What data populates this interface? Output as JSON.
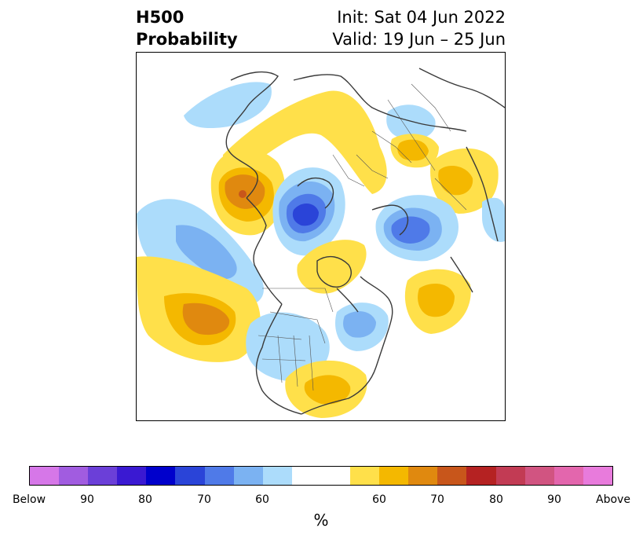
{
  "title": {
    "left_line1": "H500",
    "left_line2": "Probability",
    "right_line1": "Init: Sat 04 Jun 2022",
    "right_line2": "Valid: 19 Jun – 25 Jun"
  },
  "colorbar": {
    "unit": "%",
    "colors": [
      "#d677e8",
      "#a15ce0",
      "#6b3fd8",
      "#3a19d2",
      "#0000cc",
      "#2a44d8",
      "#4f7ae8",
      "#7bb2f2",
      "#acdcfb",
      "#ffffff",
      "#ffffff",
      "#ffe04a",
      "#f4b800",
      "#e0890f",
      "#c8561b",
      "#b52222",
      "#c23b54",
      "#d15481",
      "#e366ad",
      "#e87bdc"
    ],
    "tick_labels": [
      "Below",
      "90",
      "80",
      "70",
      "60",
      "60",
      "70",
      "80",
      "90",
      "Above"
    ]
  },
  "map": {
    "anomalies": [
      {
        "name": "blue-gulf-of-alaska",
        "kind": "below",
        "levels": 2
      },
      {
        "name": "orange-east-siberia",
        "kind": "above",
        "levels": 3
      },
      {
        "name": "blue-arctic-ocean",
        "kind": "below",
        "levels": 4
      },
      {
        "name": "blue-scandinavia",
        "kind": "below",
        "levels": 3
      },
      {
        "name": "yellow-north-pacific",
        "kind": "above",
        "levels": 3
      },
      {
        "name": "yellow-north-atlantic",
        "kind": "above",
        "levels": 2
      },
      {
        "name": "yellow-southeast-us",
        "kind": "above",
        "levels": 2
      },
      {
        "name": "yellow-canadian-archipelago",
        "kind": "above",
        "levels": 1
      },
      {
        "name": "yellow-central-asia",
        "kind": "above",
        "levels": 1
      },
      {
        "name": "yellow-europe",
        "kind": "above",
        "levels": 1
      },
      {
        "name": "blue-western-us",
        "kind": "below",
        "levels": 1
      },
      {
        "name": "blue-hudson-bay",
        "kind": "below",
        "levels": 1
      },
      {
        "name": "blue-china",
        "kind": "below",
        "levels": 1
      },
      {
        "name": "blue-east-asia",
        "kind": "below",
        "levels": 1
      }
    ]
  }
}
